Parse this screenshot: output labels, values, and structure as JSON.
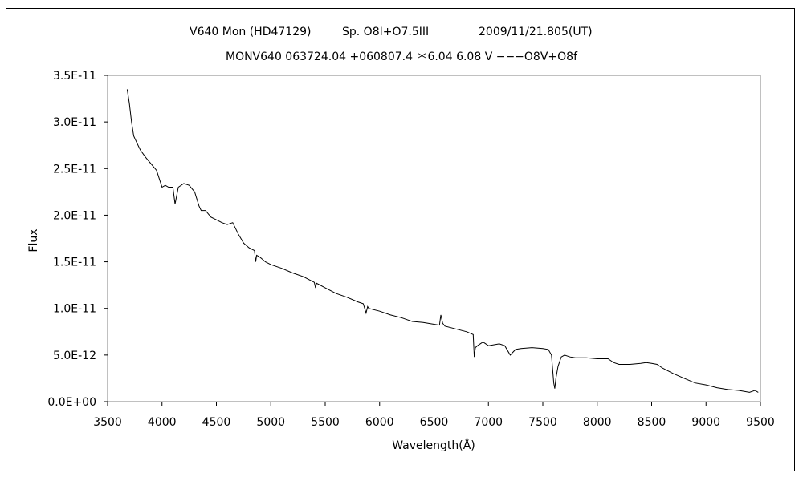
{
  "chart_data": {
    "type": "line",
    "title": {
      "object": "V640 Mon (HD47129)",
      "sptype": "Sp. O8I+O7.5III",
      "date": "2009/11/21.805(UT)"
    },
    "subtitle": "MONV640 063724.04 +060807.4 ＊6.04 6.08 V −−−O8V+O8f",
    "xlabel": "Wavelength(Å)",
    "ylabel": "Flux",
    "xlim": [
      3500,
      9500
    ],
    "ylim": [
      0,
      3.5e-11
    ],
    "x_ticks": [
      "3500",
      "4000",
      "4500",
      "5000",
      "5500",
      "6000",
      "6500",
      "7000",
      "7500",
      "8000",
      "8500",
      "9000",
      "9500"
    ],
    "y_ticks": [
      "0.0E+00",
      "5.0E-12",
      "1.0E-11",
      "1.5E-11",
      "2.0E-11",
      "2.5E-11",
      "3.0E-11",
      "3.5E-11"
    ],
    "grid": false,
    "series": [
      {
        "color": "#000000",
        "x": [
          3680,
          3700,
          3720,
          3740,
          3760,
          3780,
          3800,
          3850,
          3900,
          3950,
          4000,
          4030,
          4060,
          4100,
          4120,
          4150,
          4200,
          4250,
          4300,
          4340,
          4360,
          4400,
          4450,
          4500,
          4550,
          4600,
          4650,
          4700,
          4750,
          4800,
          4850,
          4861,
          4870,
          4900,
          4950,
          5000,
          5100,
          5200,
          5300,
          5400,
          5411,
          5420,
          5500,
          5600,
          5700,
          5800,
          5850,
          5876,
          5890,
          5900,
          6000,
          6100,
          6200,
          6300,
          6400,
          6500,
          6550,
          6563,
          6580,
          6600,
          6700,
          6800,
          6860,
          6870,
          6880,
          6900,
          6950,
          7000,
          7100,
          7150,
          7200,
          7250,
          7300,
          7400,
          7500,
          7550,
          7580,
          7600,
          7610,
          7620,
          7640,
          7670,
          7700,
          7750,
          7800,
          7900,
          8000,
          8100,
          8150,
          8200,
          8300,
          8400,
          8450,
          8500,
          8550,
          8600,
          8700,
          8800,
          8900,
          9000,
          9100,
          9200,
          9300,
          9400,
          9450,
          9480
        ],
        "y": [
          3.35e-11,
          3.2e-11,
          3e-11,
          2.85e-11,
          2.8e-11,
          2.75e-11,
          2.7e-11,
          2.62e-11,
          2.55e-11,
          2.48e-11,
          2.3e-11,
          2.32e-11,
          2.3e-11,
          2.3e-11,
          2.12e-11,
          2.3e-11,
          2.34e-11,
          2.32e-11,
          2.25e-11,
          2.1e-11,
          2.05e-11,
          2.05e-11,
          1.98e-11,
          1.95e-11,
          1.92e-11,
          1.9e-11,
          1.92e-11,
          1.8e-11,
          1.7e-11,
          1.65e-11,
          1.62e-11,
          1.5e-11,
          1.57e-11,
          1.55e-11,
          1.5e-11,
          1.47e-11,
          1.43e-11,
          1.38e-11,
          1.34e-11,
          1.28e-11,
          1.22e-11,
          1.27e-11,
          1.22e-11,
          1.16e-11,
          1.12e-11,
          1.07e-11,
          1.05e-11,
          9.5e-12,
          1.02e-11,
          1e-11,
          9.7e-12,
          9.3e-12,
          9e-12,
          8.6e-12,
          8.5e-12,
          8.3e-12,
          8.2e-12,
          9.3e-12,
          8.4e-12,
          8.1e-12,
          7.8e-12,
          7.5e-12,
          7.2e-12,
          4.8e-12,
          5.8e-12,
          6e-12,
          6.4e-12,
          6e-12,
          6.2e-12,
          6e-12,
          5e-12,
          5.6e-12,
          5.7e-12,
          5.8e-12,
          5.7e-12,
          5.6e-12,
          5e-12,
          2e-12,
          1.4e-12,
          2.5e-12,
          3.8e-12,
          4.8e-12,
          5e-12,
          4.8e-12,
          4.7e-12,
          4.7e-12,
          4.6e-12,
          4.6e-12,
          4.2e-12,
          4e-12,
          4e-12,
          4.1e-12,
          4.2e-12,
          4.1e-12,
          4e-12,
          3.6e-12,
          3e-12,
          2.5e-12,
          2e-12,
          1.8e-12,
          1.5e-12,
          1.3e-12,
          1.2e-12,
          1e-12,
          1.2e-12,
          1e-12
        ]
      }
    ]
  }
}
